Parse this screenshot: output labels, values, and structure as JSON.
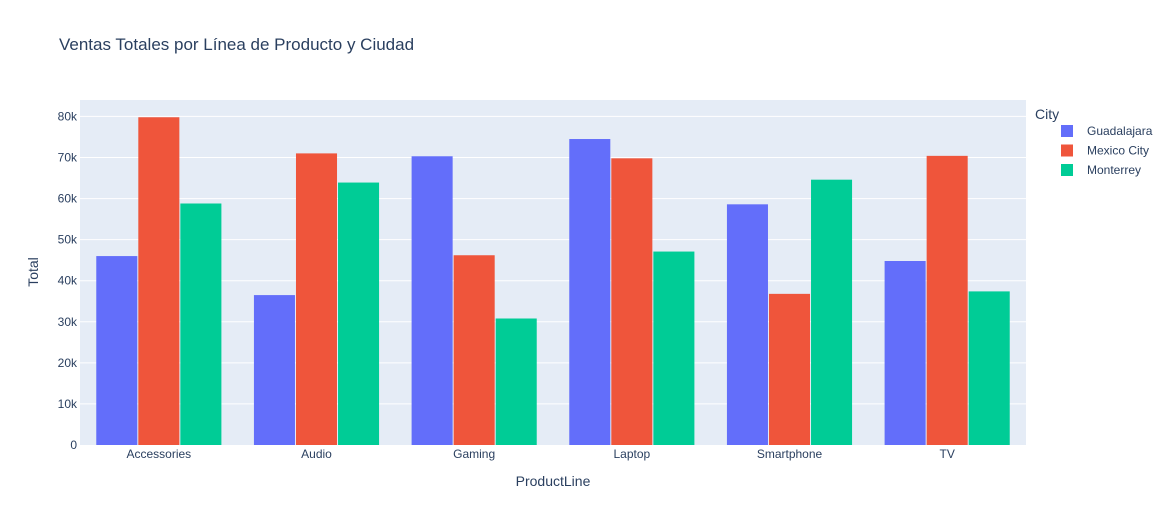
{
  "chart_data": {
    "type": "bar",
    "title": "Ventas Totales por Línea de Producto y Ciudad",
    "xlabel": "ProductLine",
    "ylabel": "Total",
    "categories": [
      "Accessories",
      "Audio",
      "Gaming",
      "Laptop",
      "Smartphone",
      "TV"
    ],
    "ylim": [
      0,
      84000
    ],
    "yticks": [
      0,
      10000,
      20000,
      30000,
      40000,
      50000,
      60000,
      70000,
      80000
    ],
    "ytick_labels": [
      "0",
      "10k",
      "20k",
      "30k",
      "40k",
      "50k",
      "60k",
      "70k",
      "80k"
    ],
    "grid": true,
    "legend": {
      "title": "City",
      "position": "top-right"
    },
    "series": [
      {
        "name": "Guadalajara",
        "color": "#636efa",
        "values": [
          46000,
          36500,
          70300,
          74500,
          58600,
          44800
        ]
      },
      {
        "name": "Mexico City",
        "color": "#ef553b",
        "values": [
          79800,
          71000,
          46200,
          69800,
          36800,
          70400
        ]
      },
      {
        "name": "Monterrey",
        "color": "#00cc96",
        "values": [
          58800,
          63900,
          30800,
          47100,
          64600,
          37400
        ]
      }
    ]
  }
}
